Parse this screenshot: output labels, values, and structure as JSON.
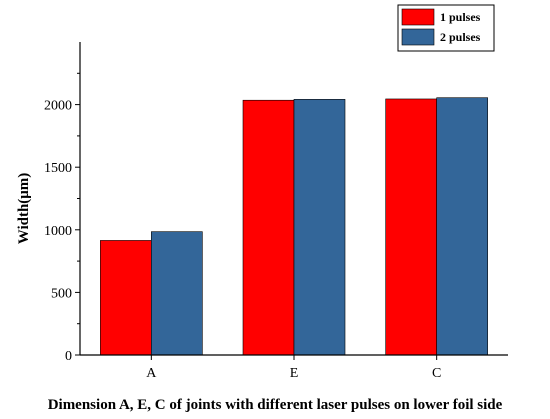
{
  "chart_data": {
    "type": "bar",
    "categories": [
      "A",
      "E",
      "C"
    ],
    "series": [
      {
        "name": "1 pulses",
        "values": [
          915,
          2035,
          2045
        ],
        "color": "#ff0000"
      },
      {
        "name": "2 pulses",
        "values": [
          985,
          2042,
          2055
        ],
        "color": "#336699"
      }
    ],
    "xlabel": "Dimension A, E, C of joints with different laser pulses on lower foil side",
    "ylabel": "Width(μm)",
    "ylim": [
      0,
      2500
    ],
    "yticks": [
      0,
      500,
      1000,
      1500,
      2000
    ],
    "grid": false,
    "legend_position": "top-right"
  }
}
